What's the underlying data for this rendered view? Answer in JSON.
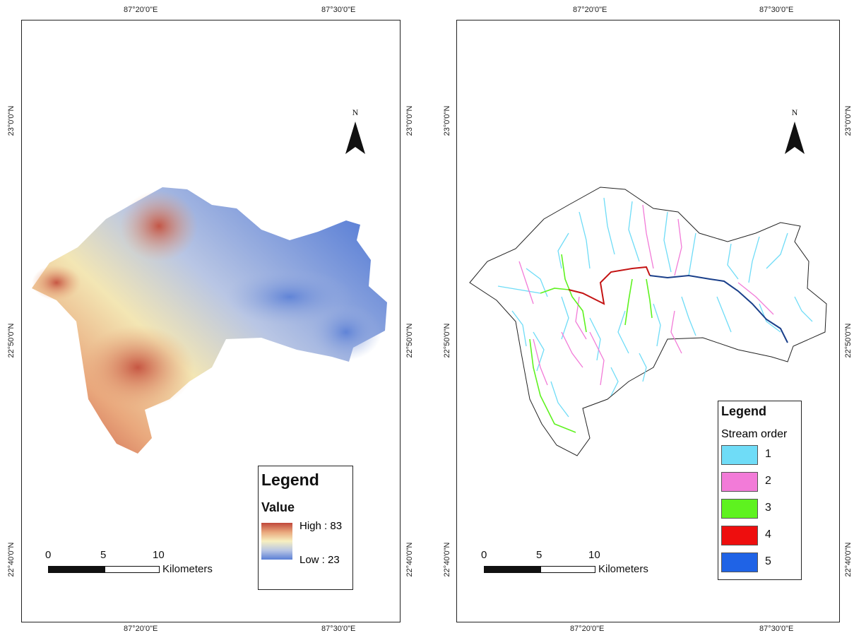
{
  "left_map": {
    "top_lon_labels": [
      "87°20'0\"E",
      "87°30'0\"E"
    ],
    "bottom_lon_labels": [
      "87°20'0\"E",
      "87°30'0\"E"
    ],
    "left_lat_labels": [
      "23°0'0\"N",
      "22°50'0\"N",
      "22°40'0\"N"
    ],
    "right_lat_labels": [
      "23°0'0\"N",
      "22°50'0\"N",
      "22°40'0\"N"
    ],
    "north_label": "N",
    "legend": {
      "title": "Legend",
      "subtitle": "Value",
      "high_label": "High : 83",
      "low_label": "Low : 23",
      "ramp_colors": [
        "#c0473a",
        "#e9a77c",
        "#f7efc0",
        "#b9c6e4",
        "#5a7fd6"
      ]
    },
    "scale": {
      "ticks": [
        "0",
        "5",
        "10"
      ],
      "unit": "Kilometers"
    }
  },
  "right_map": {
    "top_lon_labels": [
      "87°20'0\"E",
      "87°30'0\"E"
    ],
    "bottom_lon_labels": [
      "87°20'0\"E",
      "87°30'0\"E"
    ],
    "left_lat_labels": [
      "23°0'0\"N",
      "22°50'0\"N",
      "22°40'0\"N"
    ],
    "right_lat_labels": [
      "23°0'0\"N",
      "22°50'0\"N",
      "22°40'0\"N"
    ],
    "north_label": "N",
    "legend": {
      "title": "Legend",
      "subtitle": "Stream order",
      "items": [
        {
          "label": "1",
          "color": "#6fdcf7"
        },
        {
          "label": "2",
          "color": "#f27bd8"
        },
        {
          "label": "3",
          "color": "#5ef21f"
        },
        {
          "label": "4",
          "color": "#ee0e0e"
        },
        {
          "label": "5",
          "color": "#1f63e6"
        }
      ]
    },
    "scale": {
      "ticks": [
        "0",
        "5",
        "10"
      ],
      "unit": "Kilometers"
    }
  }
}
